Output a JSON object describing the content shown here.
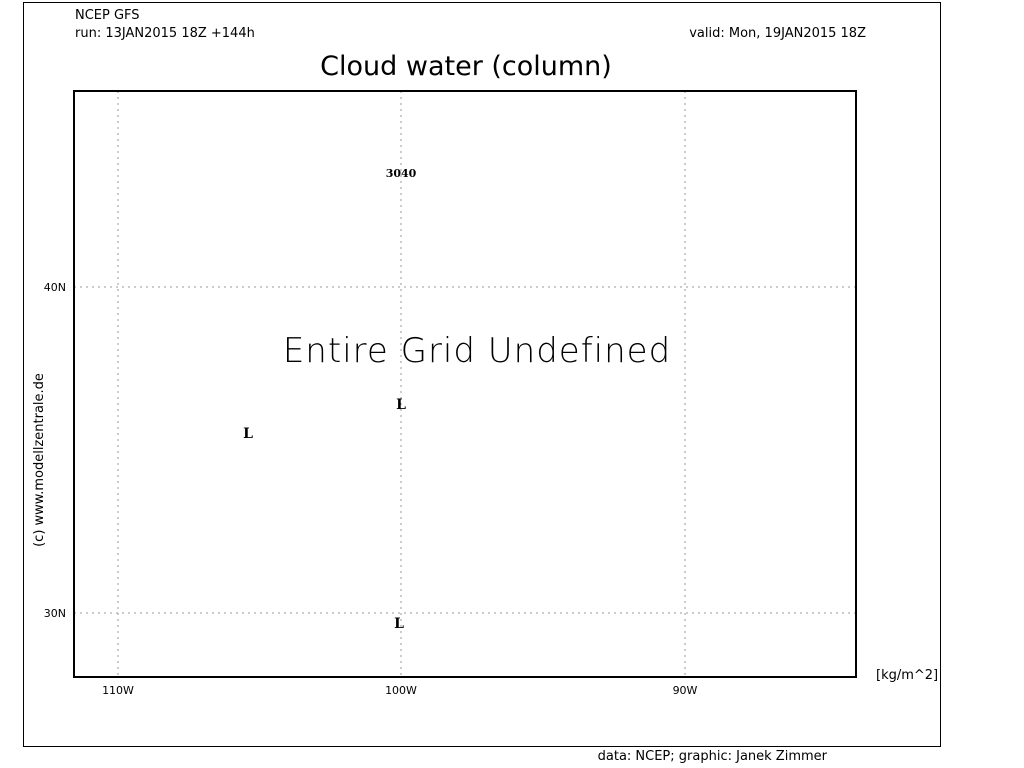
{
  "header": {
    "model": "NCEP GFS",
    "run": "run: 13JAN2015 18Z +144h",
    "valid": "valid: Mon, 19JAN2015 18Z",
    "title": "Cloud water (column)"
  },
  "map": {
    "message": "Entire Grid Undefined",
    "contour_label": "3040",
    "pressure_centers": [
      "L",
      "L",
      "L"
    ],
    "lat_labels": [
      "40N",
      "30N"
    ],
    "lon_labels": [
      "110W",
      "100W",
      "90W"
    ],
    "units": "[kg/m^2]"
  },
  "footer": {
    "copyright": "(c) www.modellzentrale.de",
    "credits": "data: NCEP; graphic: Janek Zimmer"
  }
}
